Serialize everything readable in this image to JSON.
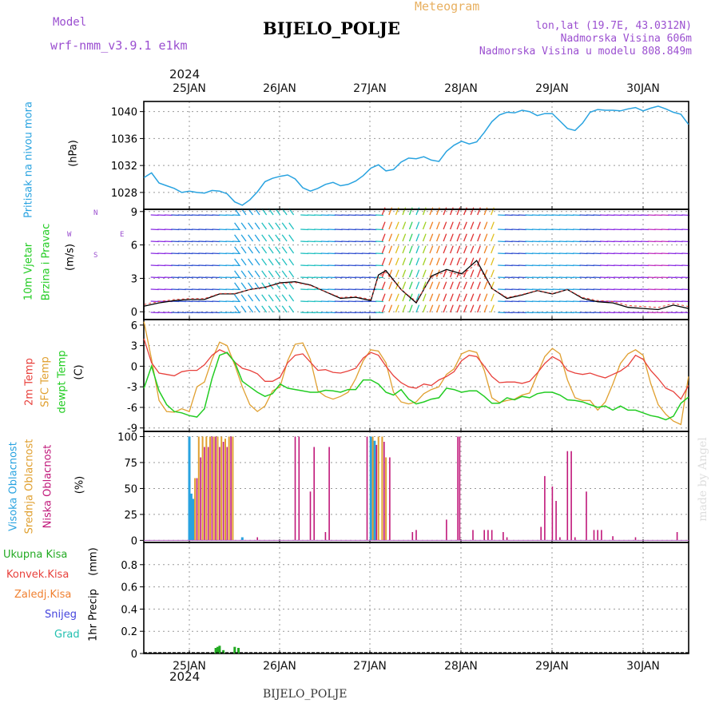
{
  "header": {
    "model_label": "Model",
    "model_name": "wrf-nmm_v3.9.1 e1km",
    "meteogram_label": "Meteogram",
    "station": "BIJELO_POLJE",
    "lonlat": "lon,lat (19.7E, 43.0312N)",
    "altitude": "Nadmorska Visina 606m",
    "model_altitude": "Nadmorska Visina u modelu 808.849m"
  },
  "footer": {
    "station": "BIJELO_POLJE",
    "credit": "made by Angel",
    "year": "2024"
  },
  "colors": {
    "pressure": "#29a3e0",
    "t2m": "#e8413c",
    "tsfc": "#e0a030",
    "dewpt": "#22cc22",
    "cloud_high": "#29a3e0",
    "cloud_mid": "#e0a030",
    "cloud_low": "#c0187a",
    "precip_total": "#22aa22",
    "precip_conv": "#e8413c",
    "precip_frozen": "#f08030",
    "precip_snow": "#4444dd",
    "precip_grad": "#22c0b0"
  },
  "chart_data": [
    {
      "type": "line",
      "panel": "pressure",
      "ylabel_main": "Pritisak na nivou mora",
      "ylabel_unit": "(hPa)",
      "x_ticks": [
        "25JAN",
        "26JAN",
        "27JAN",
        "28JAN",
        "29JAN",
        "30JAN"
      ],
      "x_top_year": "2024",
      "y_ticks": [
        1028,
        1032,
        1036,
        1040
      ],
      "ylim": [
        1025.5,
        1041.5
      ],
      "xlim": [
        0,
        144
      ],
      "grid": true,
      "series": [
        {
          "x": [
            0,
            2,
            4,
            6,
            8,
            10,
            12,
            14,
            16,
            18,
            20,
            22,
            24,
            26,
            28,
            30,
            32,
            34,
            36,
            38,
            40,
            42,
            44,
            46,
            48,
            50,
            52,
            54,
            56,
            58,
            60,
            62,
            64,
            66,
            68,
            70,
            72,
            74,
            76,
            78,
            80,
            82,
            84,
            86,
            88,
            90,
            92,
            94,
            96,
            98,
            100,
            102,
            104,
            106,
            108,
            110,
            112,
            114,
            116,
            118,
            120,
            122,
            124,
            126,
            128,
            130,
            132,
            134,
            136,
            138,
            140,
            142,
            144
          ],
          "values": [
            1030.2,
            1030.9,
            1029.4,
            1029.0,
            1028.6,
            1028.0,
            1028.2,
            1028.0,
            1027.9,
            1028.3,
            1028.2,
            1027.8,
            1026.6,
            1026.1,
            1026.9,
            1028.1,
            1029.6,
            1030.1,
            1030.4,
            1030.6,
            1030.0,
            1028.7,
            1028.2,
            1028.6,
            1029.2,
            1029.5,
            1029.0,
            1029.2,
            1029.7,
            1030.5,
            1031.6,
            1032.1,
            1031.2,
            1031.4,
            1032.5,
            1033.1,
            1033.0,
            1033.3,
            1032.8,
            1032.6,
            1034.1,
            1035.0,
            1035.6,
            1035.2,
            1035.5,
            1036.9,
            1038.5,
            1039.5,
            1039.9,
            1039.8,
            1040.2,
            1040.0,
            1039.4,
            1039.7,
            1039.7,
            1038.6,
            1037.5,
            1037.2,
            1038.3,
            1039.9,
            1040.3,
            1040.2,
            1040.2,
            1040.1,
            1040.4,
            1040.6,
            1040.1,
            1040.5,
            1040.8,
            1040.4,
            1039.9,
            1039.6,
            1038.1
          ]
        }
      ]
    },
    {
      "type": "line",
      "panel": "wind",
      "ylabel_main": "10m Vjetar",
      "ylabel_sub": "Brzina i Pravac",
      "ylabel_unit": "(m/s)",
      "compass": [
        "N",
        "W",
        "E",
        "S"
      ],
      "y_ticks": [
        0,
        3,
        6,
        9
      ],
      "ylim": [
        -0.7,
        9.2
      ],
      "xlim": [
        0,
        144
      ],
      "grid": true,
      "series": [
        {
          "name": "speed",
          "x": [
            0,
            4,
            8,
            12,
            16,
            20,
            24,
            28,
            32,
            36,
            40,
            44,
            48,
            52,
            56,
            60,
            62,
            64,
            68,
            72,
            76,
            80,
            84,
            88,
            92,
            96,
            100,
            104,
            108,
            112,
            116,
            120,
            124,
            128,
            132,
            136,
            140,
            144
          ],
          "values": [
            0.5,
            0.8,
            1.0,
            1.1,
            1.1,
            1.6,
            1.6,
            2.0,
            2.2,
            2.6,
            2.7,
            2.4,
            1.8,
            1.2,
            1.3,
            1.0,
            3.3,
            3.7,
            2.0,
            0.8,
            3.2,
            3.8,
            3.4,
            4.6,
            2.1,
            1.2,
            1.5,
            1.9,
            1.6,
            2.0,
            1.2,
            0.9,
            0.8,
            0.4,
            0.3,
            0.2,
            0.6,
            0.3
          ]
        }
      ]
    },
    {
      "type": "line",
      "panel": "temperature",
      "ylabel_main": "2m Temp",
      "ylabel_sub": "SFC Temp",
      "ylabel_sub2": "dewpt Temp",
      "ylabel_unit": "(C)",
      "y_ticks": [
        -9,
        -6,
        -3,
        0,
        3,
        6
      ],
      "ylim": [
        -9.5,
        6.8
      ],
      "xlim": [
        0,
        144
      ],
      "grid": true,
      "series": [
        {
          "name": "2m Temp",
          "x": [
            0,
            2,
            4,
            6,
            8,
            10,
            12,
            14,
            16,
            18,
            20,
            22,
            24,
            26,
            28,
            30,
            32,
            34,
            36,
            38,
            40,
            42,
            44,
            46,
            48,
            50,
            52,
            54,
            56,
            58,
            60,
            62,
            64,
            66,
            68,
            70,
            72,
            74,
            76,
            78,
            80,
            82,
            84,
            86,
            88,
            90,
            92,
            94,
            96,
            98,
            100,
            102,
            104,
            106,
            108,
            110,
            112,
            114,
            116,
            118,
            120,
            122,
            124,
            126,
            128,
            130,
            132,
            134,
            136,
            138,
            140,
            142,
            144
          ],
          "values": [
            4.0,
            0.5,
            -1.0,
            -1.2,
            -1.4,
            -0.8,
            -0.6,
            -0.6,
            0.2,
            1.6,
            2.4,
            1.9,
            0.6,
            -0.3,
            -0.6,
            -1.1,
            -2.2,
            -2.2,
            -1.6,
            0.5,
            1.6,
            1.8,
            0.6,
            -0.6,
            -0.5,
            -0.9,
            -1.0,
            -0.7,
            -0.3,
            1.2,
            2.0,
            1.6,
            0.0,
            -1.4,
            -2.4,
            -3.0,
            -3.2,
            -2.6,
            -2.8,
            -2.0,
            -1.5,
            -0.8,
            0.8,
            1.6,
            1.4,
            0.0,
            -1.5,
            -2.4,
            -2.3,
            -2.3,
            -2.5,
            -2.2,
            -1.0,
            0.4,
            1.4,
            0.8,
            -0.6,
            -1.0,
            -1.2,
            -1.0,
            -1.4,
            -1.7,
            -1.2,
            -0.7,
            0.1,
            1.6,
            1.0,
            -0.6,
            -1.8,
            -3.2,
            -3.7,
            -4.8,
            -2.8
          ]
        },
        {
          "name": "SFC Temp",
          "x": [
            0,
            2,
            4,
            6,
            8,
            10,
            12,
            14,
            16,
            18,
            20,
            22,
            24,
            26,
            28,
            30,
            32,
            34,
            36,
            38,
            40,
            42,
            44,
            46,
            48,
            50,
            52,
            54,
            56,
            58,
            60,
            62,
            64,
            66,
            68,
            70,
            72,
            74,
            76,
            78,
            80,
            82,
            84,
            86,
            88,
            90,
            92,
            94,
            96,
            98,
            100,
            102,
            104,
            106,
            108,
            110,
            112,
            114,
            116,
            118,
            120,
            122,
            124,
            126,
            128,
            130,
            132,
            134,
            136,
            138,
            140,
            142,
            144
          ],
          "values": [
            6.5,
            1.0,
            -5.0,
            -6.6,
            -6.7,
            -6.2,
            -6.6,
            -3.0,
            -2.3,
            1.0,
            3.5,
            3.0,
            0.2,
            -3.0,
            -5.6,
            -6.6,
            -5.8,
            -3.6,
            -3.0,
            0.8,
            3.2,
            3.4,
            1.0,
            -3.6,
            -4.4,
            -4.8,
            -4.4,
            -3.8,
            -1.8,
            0.8,
            2.4,
            2.2,
            0.5,
            -3.8,
            -5.2,
            -5.5,
            -5.2,
            -4.0,
            -3.4,
            -3.0,
            -1.2,
            -0.4,
            1.8,
            2.3,
            2.0,
            -0.6,
            -4.6,
            -5.3,
            -5.0,
            -4.8,
            -4.2,
            -3.9,
            -1.2,
            1.4,
            2.6,
            1.8,
            -2.0,
            -4.6,
            -5.0,
            -5.0,
            -6.4,
            -5.2,
            -2.6,
            0.4,
            1.8,
            2.4,
            1.6,
            -2.5,
            -5.6,
            -7.0,
            -8.0,
            -8.5,
            -1.5
          ]
        },
        {
          "name": "dewpt Temp",
          "x": [
            0,
            2,
            4,
            6,
            8,
            10,
            12,
            14,
            16,
            18,
            20,
            22,
            24,
            26,
            28,
            30,
            32,
            34,
            36,
            38,
            40,
            42,
            44,
            46,
            48,
            50,
            52,
            54,
            56,
            58,
            60,
            62,
            64,
            66,
            68,
            70,
            72,
            74,
            76,
            78,
            80,
            82,
            84,
            86,
            88,
            90,
            92,
            94,
            96,
            98,
            100,
            102,
            104,
            106,
            108,
            110,
            112,
            114,
            116,
            118,
            120,
            122,
            124,
            126,
            128,
            130,
            132,
            134,
            136,
            138,
            140,
            142,
            144
          ],
          "values": [
            -3.2,
            0.0,
            -3.6,
            -5.6,
            -6.6,
            -6.8,
            -7.2,
            -7.4,
            -6.2,
            -1.8,
            1.6,
            2.0,
            0.6,
            -2.2,
            -3.0,
            -3.8,
            -4.4,
            -4.0,
            -2.6,
            -3.2,
            -3.4,
            -3.6,
            -3.8,
            -3.8,
            -3.5,
            -3.6,
            -3.8,
            -3.4,
            -3.4,
            -2.0,
            -2.0,
            -2.6,
            -3.8,
            -4.2,
            -3.4,
            -4.8,
            -5.5,
            -5.2,
            -4.8,
            -4.6,
            -3.2,
            -3.4,
            -3.8,
            -3.6,
            -3.6,
            -4.4,
            -5.4,
            -5.4,
            -4.6,
            -4.9,
            -4.4,
            -4.6,
            -4.0,
            -3.8,
            -3.8,
            -4.2,
            -4.9,
            -5.0,
            -5.2,
            -5.6,
            -6.0,
            -5.8,
            -6.4,
            -5.8,
            -6.4,
            -6.4,
            -6.8,
            -7.2,
            -7.4,
            -7.8,
            -7.3,
            -5.4,
            -4.5
          ]
        }
      ]
    },
    {
      "type": "bar",
      "panel": "clouds",
      "ylabel_main": "Visoka Oblacnost",
      "ylabel_sub": "Srednja Oblacnost",
      "ylabel_sub2": "Niska Oblacnost",
      "ylabel_unit": "(%)",
      "y_ticks": [
        0,
        25,
        50,
        75,
        100
      ],
      "ylim": [
        -2,
        105
      ],
      "xlim": [
        0,
        144
      ],
      "grid": true,
      "series": [
        {
          "name": "Visoka Oblacnost",
          "x": [
            12,
            12.5,
            13,
            26,
            60,
            61
          ],
          "values": [
            100,
            45,
            40,
            3,
            100,
            96
          ]
        },
        {
          "name": "Srednja Oblacnost",
          "x": [
            13.5,
            14.5,
            15.5,
            16.5,
            17.5,
            18.5,
            19.5,
            20.5,
            21.5,
            22.5,
            23.5,
            60.5,
            62,
            63,
            64
          ],
          "values": [
            60,
            100,
            100,
            100,
            100,
            100,
            100,
            100,
            98,
            100,
            100,
            100,
            100,
            100,
            80
          ]
        },
        {
          "name": "Niska Oblacnost",
          "x": [
            14,
            15,
            16,
            17,
            18,
            19,
            20,
            21,
            22,
            23,
            30,
            40,
            41,
            44,
            45,
            48,
            49,
            59,
            61.5,
            63.5,
            65,
            71,
            72,
            80,
            83,
            83.5,
            87,
            90,
            91,
            92,
            95,
            96,
            105,
            106,
            108,
            109,
            110,
            112,
            113,
            114,
            117,
            119,
            120,
            121,
            124,
            130,
            141
          ],
          "values": [
            60,
            80,
            90,
            90,
            100,
            100,
            90,
            95,
            90,
            100,
            3,
            100,
            100,
            47,
            90,
            8,
            90,
            100,
            92,
            95,
            80,
            8,
            10,
            20,
            100,
            100,
            10,
            10,
            10,
            10,
            8,
            3,
            13,
            62,
            52,
            38,
            3,
            86,
            86,
            3,
            47,
            10,
            10,
            10,
            4,
            3,
            8
          ]
        }
      ]
    },
    {
      "type": "bar",
      "panel": "precip",
      "ylabel_main": "1hr Precip",
      "ylabel_unit": "(mm)",
      "legend": [
        "Ukupna Kisa",
        "Konvek.Kisa",
        "Zaledj.Kisa",
        "Snijeg",
        "Grad"
      ],
      "y_ticks": [
        0,
        0.2,
        0.4,
        0.6,
        0.8
      ],
      "y_tick_labels": [
        "0",
        "0.2",
        "0.4",
        "0.6",
        "0.8"
      ],
      "ylim": [
        0,
        1.0
      ],
      "xlim": [
        0,
        144
      ],
      "grid": true,
      "series": [
        {
          "name": "Ukupna Kisa",
          "x": [
            19,
            19.5,
            20,
            21,
            24,
            25
          ],
          "values": [
            0.05,
            0.06,
            0.07,
            0.03,
            0.06,
            0.05
          ]
        }
      ]
    }
  ]
}
